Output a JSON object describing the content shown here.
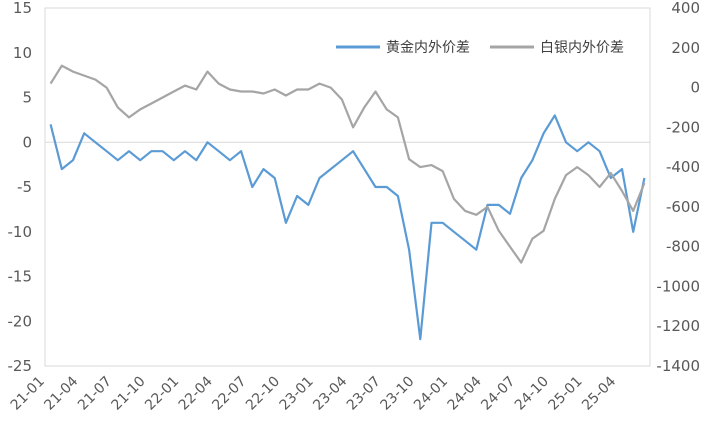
{
  "chart_data": {
    "type": "line",
    "title": "",
    "xlabel": "",
    "ylabel": "",
    "y2label": "",
    "legend_position": "top-right",
    "grid": false,
    "x_ticks": [
      "21-01",
      "21-04",
      "21-07",
      "21-10",
      "22-01",
      "22-04",
      "22-07",
      "22-10",
      "23-01",
      "23-04",
      "23-07",
      "23-10",
      "24-01",
      "24-04",
      "24-07",
      "24-10",
      "25-01",
      "25-04"
    ],
    "y_left_ticks": [
      "15",
      "10",
      "5",
      "0",
      "-5",
      "-10",
      "-15",
      "-20",
      "-25"
    ],
    "y_right_ticks": [
      "400",
      "200",
      "0",
      "-200",
      "-400",
      "-600",
      "-800",
      "-1000",
      "-1200",
      "-1400"
    ],
    "ylim_left": [
      -25,
      15
    ],
    "ylim_right": [
      -1400,
      400
    ],
    "series": [
      {
        "name": "黄金内外价差",
        "axis": "left",
        "color": "#5B9BD5",
        "x": [
          "21-01",
          "21-02",
          "21-03",
          "21-04",
          "21-05",
          "21-06",
          "21-07",
          "21-08",
          "21-09",
          "21-10",
          "21-11",
          "21-12",
          "22-01",
          "22-02",
          "22-03",
          "22-04",
          "22-05",
          "22-06",
          "22-07",
          "22-08",
          "22-09",
          "22-10",
          "22-11",
          "22-12",
          "23-01",
          "23-02",
          "23-03",
          "23-04",
          "23-05",
          "23-06",
          "23-07",
          "23-08",
          "23-09",
          "23-10",
          "23-11",
          "23-12",
          "24-01",
          "24-02",
          "24-03",
          "24-04",
          "24-05",
          "24-06",
          "24-07",
          "24-08",
          "24-09",
          "24-10",
          "24-11",
          "24-12",
          "25-01",
          "25-02",
          "25-03",
          "25-04",
          "25-05",
          "25-06"
        ],
        "values": [
          2,
          -3,
          -2,
          1,
          0,
          -1,
          -2,
          -1,
          -2,
          -1,
          -1,
          -2,
          -1,
          -2,
          0,
          -1,
          -2,
          -1,
          -5,
          -3,
          -4,
          -9,
          -6,
          -7,
          -4,
          -3,
          -2,
          -1,
          -3,
          -5,
          -5,
          -6,
          -12,
          -22,
          -9,
          -9,
          -10,
          -11,
          -12,
          -7,
          -7,
          -8,
          -4,
          -2,
          1,
          3,
          0,
          -1,
          0,
          -1,
          -4,
          -3,
          -10,
          -4
        ]
      },
      {
        "name": "白银内外价差",
        "axis": "right",
        "color": "#A5A5A5",
        "x": [
          "21-01",
          "21-02",
          "21-03",
          "21-04",
          "21-05",
          "21-06",
          "21-07",
          "21-08",
          "21-09",
          "21-10",
          "21-11",
          "21-12",
          "22-01",
          "22-02",
          "22-03",
          "22-04",
          "22-05",
          "22-06",
          "22-07",
          "22-08",
          "22-09",
          "22-10",
          "22-11",
          "22-12",
          "23-01",
          "23-02",
          "23-03",
          "23-04",
          "23-05",
          "23-06",
          "23-07",
          "23-08",
          "23-09",
          "23-10",
          "23-11",
          "23-12",
          "24-01",
          "24-02",
          "24-03",
          "24-04",
          "24-05",
          "24-06",
          "24-07",
          "24-08",
          "24-09",
          "24-10",
          "24-11",
          "24-12",
          "25-01",
          "25-02",
          "25-03",
          "25-04",
          "25-05",
          "25-06"
        ],
        "values": [
          20,
          110,
          80,
          60,
          40,
          0,
          -100,
          -150,
          -110,
          -80,
          -50,
          -20,
          10,
          -10,
          80,
          20,
          -10,
          -20,
          -20,
          -30,
          -10,
          -40,
          -10,
          -10,
          20,
          0,
          -60,
          -200,
          -100,
          -20,
          -110,
          -150,
          -360,
          -400,
          -390,
          -420,
          -560,
          -620,
          -640,
          -600,
          -720,
          -800,
          -880,
          -760,
          -720,
          -560,
          -440,
          -400,
          -440,
          -500,
          -430,
          -520,
          -620,
          -480
        ]
      }
    ]
  }
}
